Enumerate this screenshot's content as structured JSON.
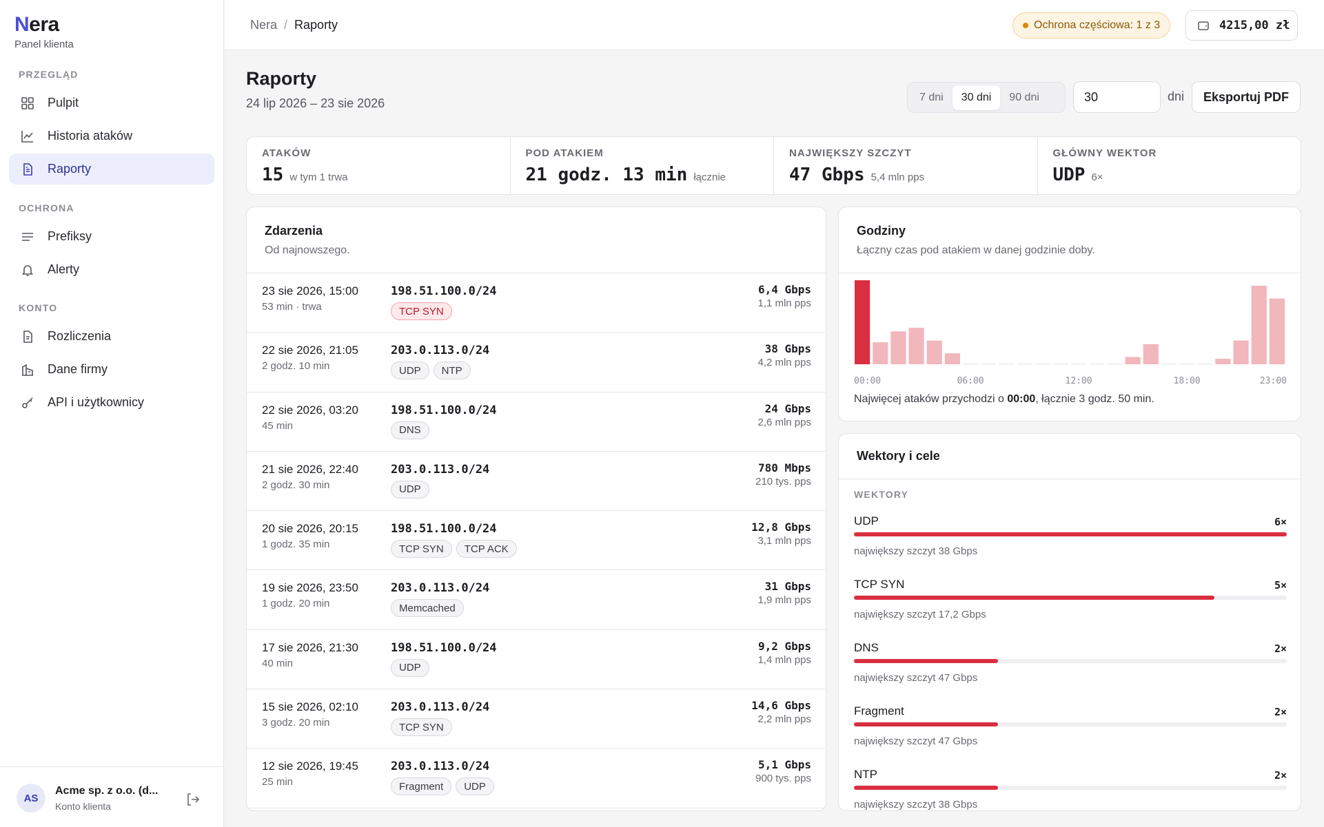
{
  "app": {
    "logo_first": "N",
    "logo_rest": "era",
    "subtitle": "Panel klienta"
  },
  "sidebar": {
    "sections": [
      {
        "label": "PRZEGLĄD"
      },
      {
        "label": "OCHRONA"
      },
      {
        "label": "KONTO"
      }
    ],
    "items": [
      {
        "label": "Pulpit",
        "icon": "dashboard-icon"
      },
      {
        "label": "Historia ataków",
        "icon": "chart-line-icon"
      },
      {
        "label": "Raporty",
        "icon": "document-icon",
        "active": true
      },
      {
        "label": "Prefiksy",
        "icon": "list-icon"
      },
      {
        "label": "Alerty",
        "icon": "bell-icon"
      },
      {
        "label": "Rozliczenia",
        "icon": "invoice-icon"
      },
      {
        "label": "Dane firmy",
        "icon": "building-icon"
      },
      {
        "label": "API i użytkownicy",
        "icon": "key-icon"
      }
    ],
    "user": {
      "initials": "AS",
      "name": "Acme sp. z o.o. (d...",
      "role": "Konto klienta"
    }
  },
  "topbar": {
    "breadcrumb_root": "Nera",
    "breadcrumb_sep": "/",
    "breadcrumb_current": "Raporty",
    "protection_badge": "Ochrona częściowa: 1 z 3",
    "balance": "4215,00 zł"
  },
  "page": {
    "title": "Raporty",
    "range": "24 lip 2026 – 23 sie 2026",
    "periods": [
      "7 dni",
      "30 dni",
      "90 dni"
    ],
    "active_period": "30 dni",
    "days_value": "30",
    "days_label": "dni",
    "export_label": "Eksportuj PDF"
  },
  "stats": [
    {
      "label": "ATAKÓW",
      "value": "15",
      "note": "w tym 1 trwa"
    },
    {
      "label": "POD ATAKIEM",
      "value": "21 godz. 13 min",
      "note": "łącznie"
    },
    {
      "label": "NAJWIĘKSZY SZCZYT",
      "value": "47 Gbps",
      "note": "5,4 mln pps"
    },
    {
      "label": "GŁÓWNY WEKTOR",
      "value": "UDP",
      "note": "6×"
    }
  ],
  "events": {
    "title": "Zdarzenia",
    "subtitle": "Od najnowszego.",
    "rows": [
      {
        "date": "23 sie 2026, 15:00",
        "duration": "53 min · trwa",
        "prefix": "198.51.100.0/24",
        "tags": [
          "TCP SYN"
        ],
        "hot": true,
        "peak": "6,4 Gbps",
        "pps": "1,1 mln pps"
      },
      {
        "date": "22 sie 2026, 21:05",
        "duration": "2 godz. 10 min",
        "prefix": "203.0.113.0/24",
        "tags": [
          "UDP",
          "NTP"
        ],
        "peak": "38 Gbps",
        "pps": "4,2 mln pps"
      },
      {
        "date": "22 sie 2026, 03:20",
        "duration": "45 min",
        "prefix": "198.51.100.0/24",
        "tags": [
          "DNS"
        ],
        "peak": "24 Gbps",
        "pps": "2,6 mln pps"
      },
      {
        "date": "21 sie 2026, 22:40",
        "duration": "2 godz. 30 min",
        "prefix": "203.0.113.0/24",
        "tags": [
          "UDP"
        ],
        "peak": "780 Mbps",
        "pps": "210 tys. pps"
      },
      {
        "date": "20 sie 2026, 20:15",
        "duration": "1 godz. 35 min",
        "prefix": "198.51.100.0/24",
        "tags": [
          "TCP SYN",
          "TCP ACK"
        ],
        "peak": "12,8 Gbps",
        "pps": "3,1 mln pps"
      },
      {
        "date": "19 sie 2026, 23:50",
        "duration": "1 godz. 20 min",
        "prefix": "203.0.113.0/24",
        "tags": [
          "Memcached"
        ],
        "peak": "31 Gbps",
        "pps": "1,9 mln pps"
      },
      {
        "date": "17 sie 2026, 21:30",
        "duration": "40 min",
        "prefix": "198.51.100.0/24",
        "tags": [
          "UDP"
        ],
        "peak": "9,2 Gbps",
        "pps": "1,4 mln pps"
      },
      {
        "date": "15 sie 2026, 02:10",
        "duration": "3 godz. 20 min",
        "prefix": "203.0.113.0/24",
        "tags": [
          "TCP SYN"
        ],
        "peak": "14,6 Gbps",
        "pps": "2,2 mln pps"
      },
      {
        "date": "12 sie 2026, 19:45",
        "duration": "25 min",
        "prefix": "203.0.113.0/24",
        "tags": [
          "Fragment",
          "UDP"
        ],
        "peak": "5,1 Gbps",
        "pps": "900 tys. pps"
      }
    ]
  },
  "hours": {
    "title": "Godziny",
    "subtitle": "Łączny czas pod atakiem w danej godzinie doby.",
    "summary_prefix": "Najwięcej ataków przychodzi o",
    "summary_hour": "00:00",
    "summary_suffix": ", łącznie 3 godz. 50 min."
  },
  "chart_data": {
    "type": "bar",
    "categories": [
      "00",
      "01",
      "02",
      "03",
      "04",
      "05",
      "06",
      "07",
      "08",
      "09",
      "10",
      "11",
      "12",
      "13",
      "14",
      "15",
      "16",
      "17",
      "18",
      "19",
      "20",
      "21",
      "22",
      "23"
    ],
    "tick_labels": [
      "00:00",
      "06:00",
      "12:00",
      "18:00",
      "23:00"
    ],
    "values": [
      230,
      60,
      90,
      100,
      65,
      30,
      0,
      0,
      0,
      0,
      0,
      0,
      0,
      0,
      0,
      20,
      55,
      0,
      0,
      0,
      15,
      65,
      215,
      180
    ],
    "unit": "min",
    "highlight_index": 0,
    "colors": {
      "highlight": "#d92f40",
      "normal": "#f2b6bd",
      "empty": "#ececf0"
    },
    "ylim": [
      0,
      230
    ],
    "grid": false
  },
  "vectors": {
    "title": "Wektory i cele",
    "section_label": "WEKTORY",
    "items": [
      {
        "name": "UDP",
        "count": "6×",
        "share": 1.0,
        "note": "największy szczyt 38 Gbps"
      },
      {
        "name": "TCP SYN",
        "count": "5×",
        "share": 0.833,
        "note": "największy szczyt 17,2 Gbps"
      },
      {
        "name": "DNS",
        "count": "2×",
        "share": 0.333,
        "note": "największy szczyt 47 Gbps"
      },
      {
        "name": "Fragment",
        "count": "2×",
        "share": 0.333,
        "note": "największy szczyt 47 Gbps"
      },
      {
        "name": "NTP",
        "count": "2×",
        "share": 0.333,
        "note": "największy szczyt 38 Gbps"
      }
    ]
  }
}
